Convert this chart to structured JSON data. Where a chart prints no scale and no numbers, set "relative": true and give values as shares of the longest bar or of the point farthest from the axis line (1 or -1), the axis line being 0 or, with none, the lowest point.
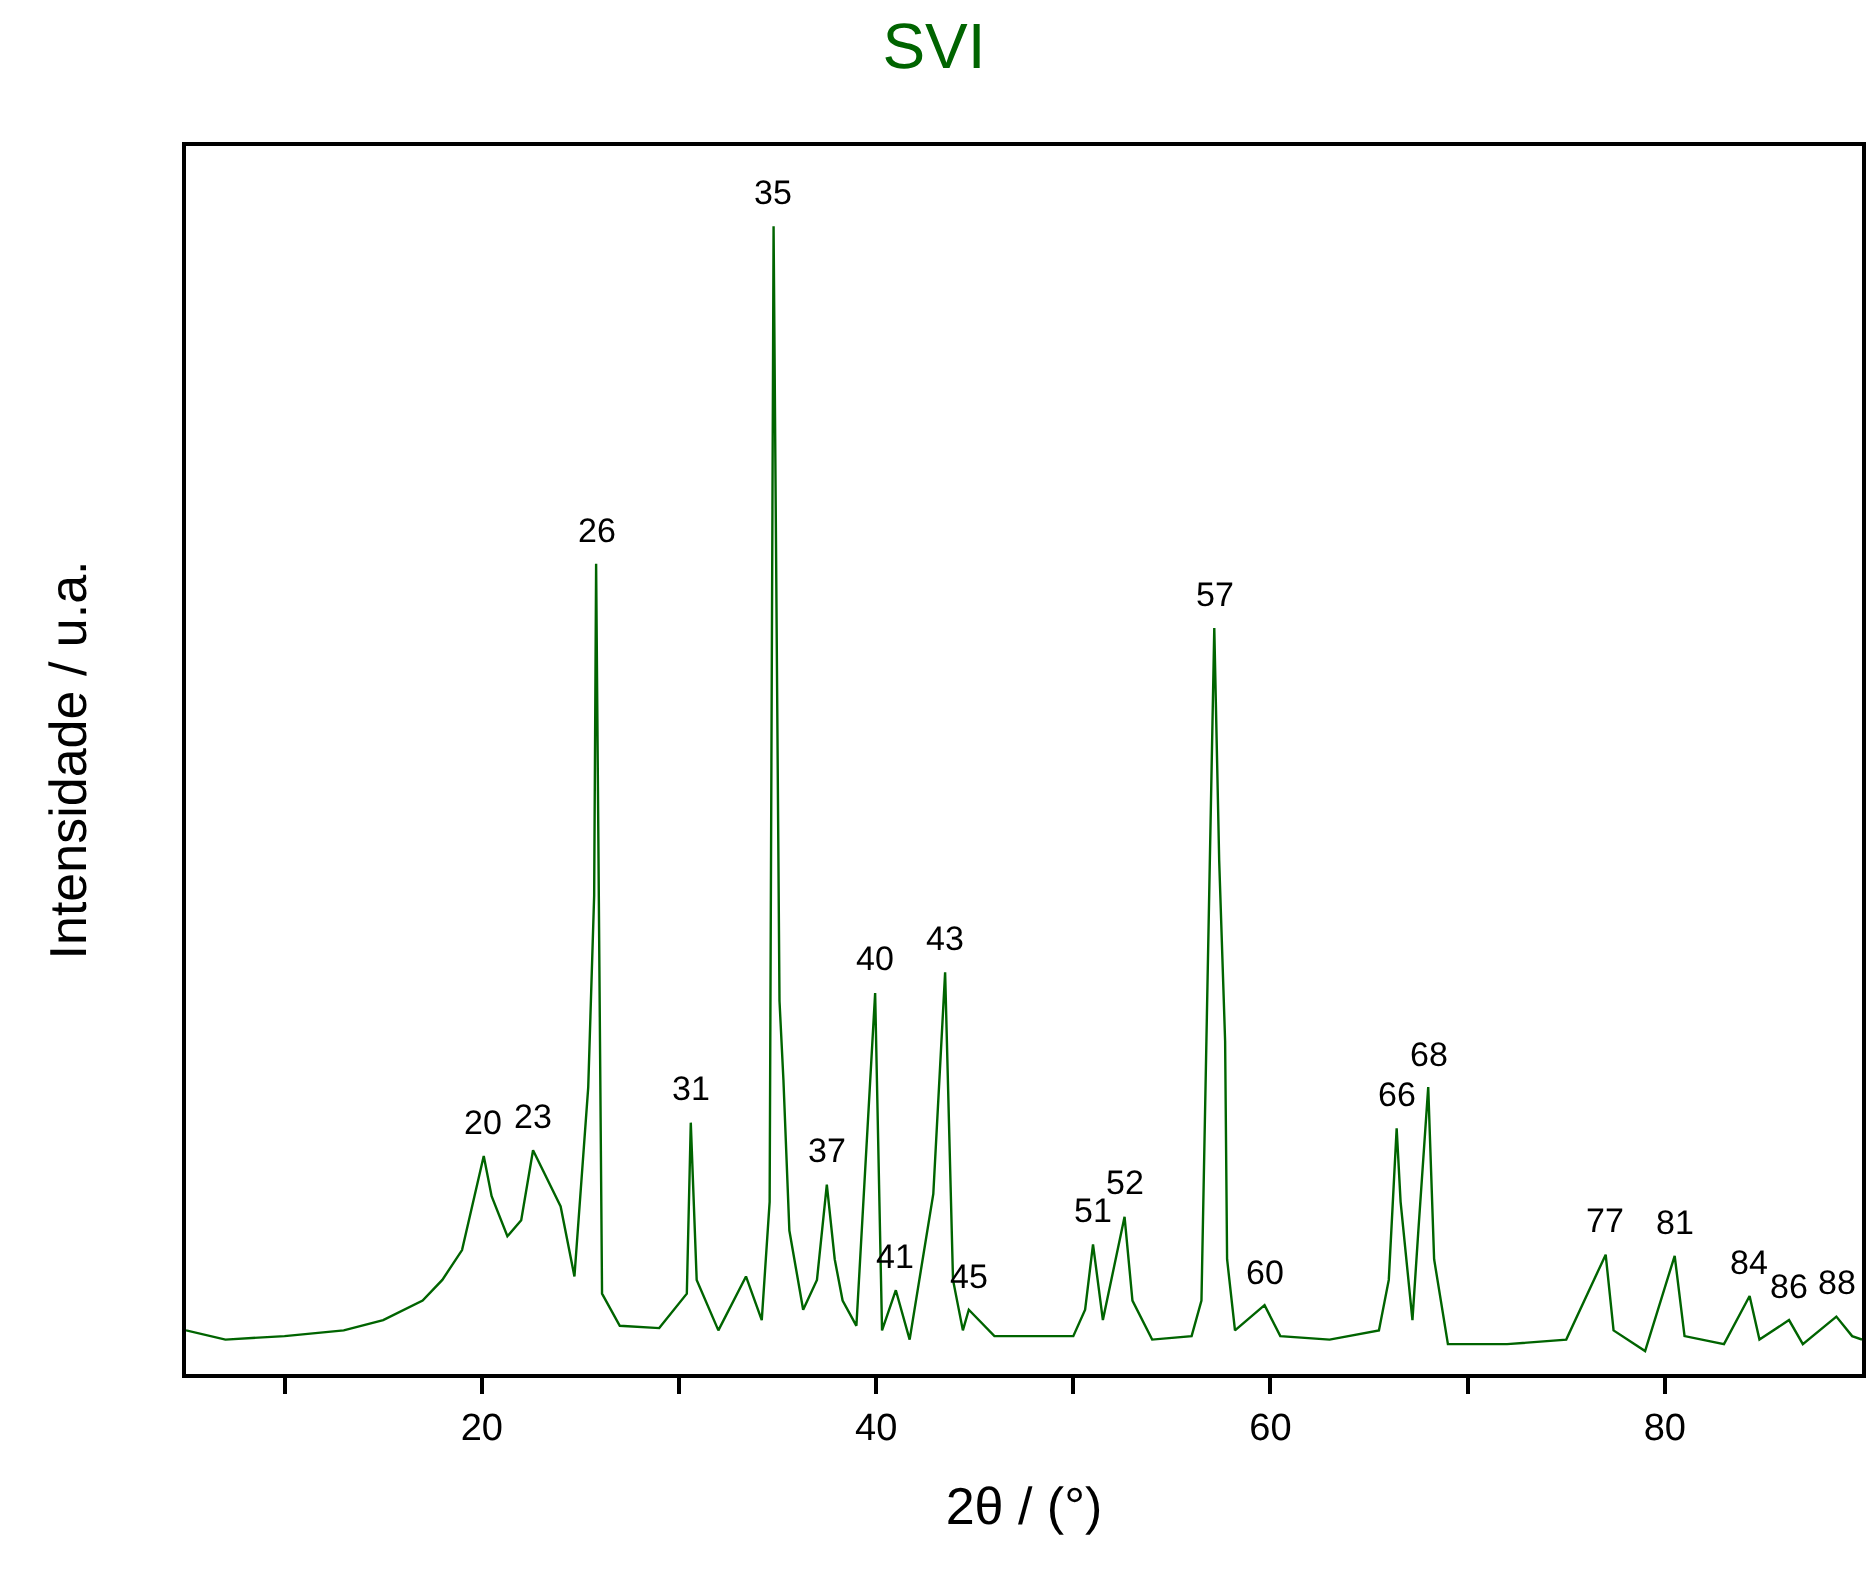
{
  "chart_data": {
    "type": "line",
    "title": "SVI",
    "xlabel": "2θ / (°)",
    "ylabel": "Intensidade / u.a.",
    "relative": true,
    "xlim": [
      5,
      90
    ],
    "xticks": [
      {
        "value": 10,
        "label": null
      },
      20,
      {
        "value": 30,
        "label": null
      },
      40,
      {
        "value": 50,
        "label": null
      },
      60,
      {
        "value": 70,
        "label": null
      },
      80
    ],
    "marker": "none",
    "line_style": "solid",
    "series": [
      {
        "color": "#006400",
        "x": [
          5,
          7,
          10,
          13,
          15,
          17,
          18,
          19,
          20.1,
          20.5,
          21.3,
          22,
          22.6,
          23.2,
          24,
          24.7,
          25.4,
          25.7,
          25.8,
          26.1,
          27,
          29,
          30.4,
          30.6,
          30.9,
          32,
          33.4,
          34.2,
          34.6,
          34.8,
          35.1,
          35.3,
          35.6,
          36.3,
          37,
          37.5,
          37.9,
          38.3,
          39,
          39.95,
          40.3,
          41.0,
          41.7,
          42.9,
          43.5,
          43.9,
          44.4,
          44.7,
          46,
          48,
          50,
          50.6,
          51.0,
          51.5,
          52.6,
          53,
          54,
          56,
          56.5,
          57.15,
          57.4,
          57.7,
          57.8,
          58.2,
          59.7,
          60.5,
          63,
          65.5,
          66.0,
          66.4,
          66.6,
          67.2,
          67.5,
          68.0,
          68.3,
          69,
          72,
          75,
          77.0,
          77.4,
          79,
          80.5,
          81,
          83,
          84.3,
          84.8,
          86.3,
          87,
          88.7,
          89.5,
          90
        ],
        "values": [
          0.038,
          0.03,
          0.033,
          0.038,
          0.047,
          0.064,
          0.082,
          0.108,
          0.19,
          0.155,
          0.12,
          0.134,
          0.195,
          0.174,
          0.146,
          0.085,
          0.25,
          0.417,
          0.706,
          0.07,
          0.042,
          0.04,
          0.07,
          0.219,
          0.082,
          0.038,
          0.085,
          0.047,
          0.15,
          1,
          0.325,
          0.256,
          0.125,
          0.056,
          0.082,
          0.165,
          0.1,
          0.064,
          0.042,
          0.332,
          0.038,
          0.073,
          0.03,
          0.157,
          0.35,
          0.082,
          0.038,
          0.056,
          0.033,
          0.033,
          0.033,
          0.056,
          0.113,
          0.047,
          0.137,
          0.064,
          0.03,
          0.033,
          0.064,
          0.65,
          0.447,
          0.29,
          0.1,
          0.038,
          0.06,
          0.033,
          0.03,
          0.038,
          0.082,
          0.214,
          0.15,
          0.047,
          0.125,
          0.25,
          0.1,
          0.026,
          0.026,
          0.03,
          0.104,
          0.038,
          0.02,
          0.103,
          0.033,
          0.026,
          0.068,
          0.03,
          0.047,
          0.026,
          0.05,
          0.033,
          0.03
        ]
      }
    ],
    "annotations": [
      {
        "text": "20",
        "x": 20.1,
        "y": 0.19
      },
      {
        "text": "23",
        "x": 22.6,
        "y": 0.195
      },
      {
        "text": "26",
        "x": 25.8,
        "y": 0.706
      },
      {
        "text": "31",
        "x": 30.6,
        "y": 0.219
      },
      {
        "text": "35",
        "x": 34.8,
        "y": 1
      },
      {
        "text": "37",
        "x": 37.5,
        "y": 0.165
      },
      {
        "text": "40",
        "x": 39.95,
        "y": 0.332
      },
      {
        "text": "41",
        "x": 41.0,
        "y": 0.073
      },
      {
        "text": "43",
        "x": 43.5,
        "y": 0.35
      },
      {
        "text": "45",
        "x": 44.7,
        "y": 0.056
      },
      {
        "text": "51",
        "x": 51.0,
        "y": 0.113
      },
      {
        "text": "52",
        "x": 52.6,
        "y": 0.137
      },
      {
        "text": "57",
        "x": 57.15,
        "y": 0.65
      },
      {
        "text": "60",
        "x": 59.7,
        "y": 0.06
      },
      {
        "text": "66",
        "x": 66.4,
        "y": 0.214
      },
      {
        "text": "68",
        "x": 68.0,
        "y": 0.25
      },
      {
        "text": "77",
        "x": 77.0,
        "y": 0.104
      },
      {
        "text": "81",
        "x": 80.5,
        "y": 0.103
      },
      {
        "text": "84",
        "x": 84.3,
        "y": 0.068
      },
      {
        "text": "86",
        "x": 86.3,
        "y": 0.047
      },
      {
        "text": "88",
        "x": 88.7,
        "y": 0.05
      }
    ]
  }
}
